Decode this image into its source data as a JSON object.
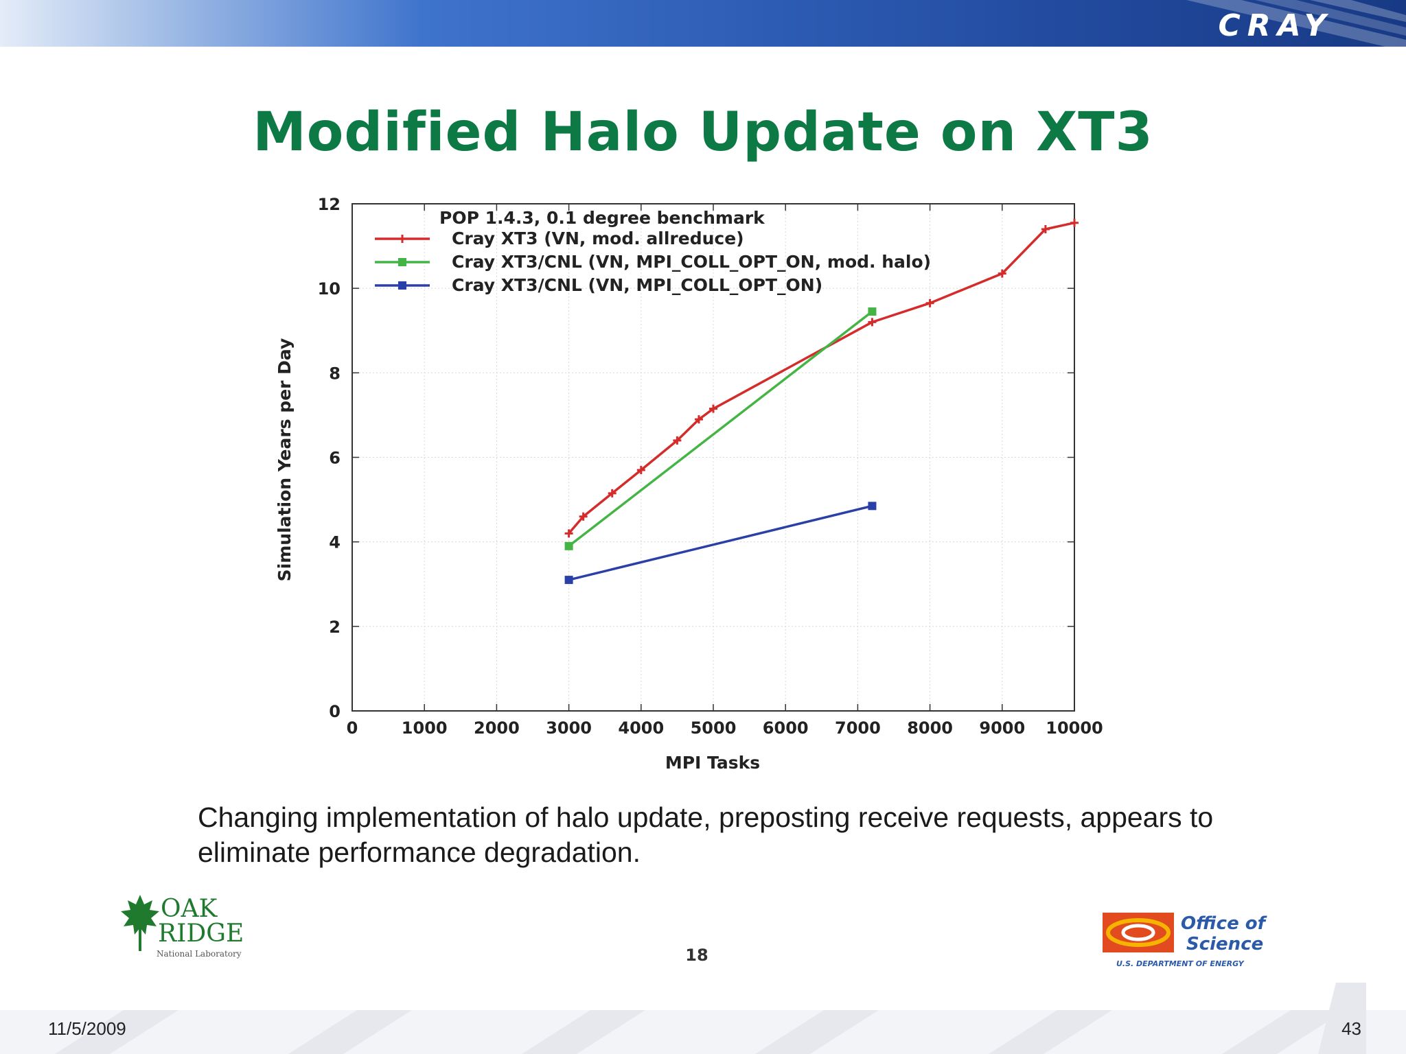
{
  "header": {
    "brand": "CRAY",
    "brand_color": "#ffffff"
  },
  "slide": {
    "title": "Modified Halo Update on XT3",
    "caption": "Changing implementation of halo update, preposting receive requests, appears to eliminate performance degradation.",
    "inner_page_number": "18",
    "date": "11/5/2009",
    "page_number": "43"
  },
  "logos": {
    "ornl": {
      "line1": "OAK",
      "line2": "RIDGE",
      "line3": "National Laboratory"
    },
    "doe": {
      "line1": "Office of",
      "line2": "Science",
      "line3": "U.S. DEPARTMENT OF ENERGY"
    }
  },
  "chart_data": {
    "type": "line",
    "title": "",
    "legend_title": "POP 1.4.3, 0.1 degree benchmark",
    "xlabel": "MPI Tasks",
    "ylabel": "Simulation Years per Day",
    "xlim": [
      0,
      10000
    ],
    "ylim": [
      0,
      12
    ],
    "xticks": [
      0,
      1000,
      2000,
      3000,
      4000,
      5000,
      6000,
      7000,
      8000,
      9000,
      10000
    ],
    "yticks": [
      0,
      2,
      4,
      6,
      8,
      10,
      12
    ],
    "grid": true,
    "legend_position": "top-left",
    "series": [
      {
        "name": "Cray XT3 (VN, mod. allreduce)",
        "color": "#d42b2b",
        "marker": "plus",
        "x": [
          3000,
          3200,
          3600,
          4000,
          4500,
          4800,
          5000,
          7200,
          8000,
          9000,
          9600,
          10000
        ],
        "y": [
          4.2,
          4.6,
          5.15,
          5.7,
          6.4,
          6.9,
          7.15,
          9.2,
          9.65,
          10.35,
          11.4,
          11.55
        ]
      },
      {
        "name": "Cray XT3/CNL (VN, MPI_COLL_OPT_ON, mod. halo)",
        "color": "#44b544",
        "marker": "square",
        "x": [
          3000,
          7200
        ],
        "y": [
          3.9,
          9.45
        ]
      },
      {
        "name": "Cray XT3/CNL (VN, MPI_COLL_OPT_ON)",
        "color": "#2b3fa8",
        "marker": "filled-square",
        "x": [
          3000,
          7200
        ],
        "y": [
          3.1,
          4.85
        ]
      }
    ]
  }
}
